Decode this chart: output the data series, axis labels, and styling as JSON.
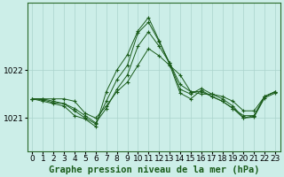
{
  "title": "Graphe pression niveau de la mer (hPa)",
  "background_color": "#cceee8",
  "grid_color": "#aad4cc",
  "line_color": "#1a5c1a",
  "xlabel_fontsize": 6.5,
  "ylabel_fontsize": 6.5,
  "title_fontsize": 7.5,
  "xlim": [
    -0.5,
    23.5
  ],
  "ylim": [
    1020.3,
    1023.4
  ],
  "yticks": [
    1021,
    1022
  ],
  "xticks": [
    0,
    1,
    2,
    3,
    4,
    5,
    6,
    7,
    8,
    9,
    10,
    11,
    12,
    13,
    14,
    15,
    16,
    17,
    18,
    19,
    20,
    21,
    22,
    23
  ],
  "series": [
    [
      1021.4,
      1021.4,
      1021.4,
      1021.4,
      1021.35,
      1021.1,
      1021.0,
      1021.25,
      1021.55,
      1021.75,
      1022.1,
      1022.45,
      1022.3,
      1022.1,
      1021.9,
      1021.55,
      1021.5,
      1021.5,
      1021.45,
      1021.35,
      1021.15,
      1021.15,
      1021.45,
      1021.55
    ],
    [
      1021.4,
      1021.4,
      1021.35,
      1021.3,
      1021.2,
      1021.05,
      1020.9,
      1021.2,
      1021.6,
      1021.9,
      1022.5,
      1022.8,
      1022.5,
      1022.15,
      1021.7,
      1021.55,
      1021.55,
      1021.45,
      1021.35,
      1021.2,
      1021.05,
      1021.05,
      1021.45,
      1021.55
    ],
    [
      1021.4,
      1021.38,
      1021.32,
      1021.3,
      1021.15,
      1021.0,
      1020.88,
      1021.35,
      1021.8,
      1022.1,
      1022.78,
      1023.0,
      1022.6,
      1022.15,
      1021.6,
      1021.5,
      1021.62,
      1021.5,
      1021.4,
      1021.25,
      1021.0,
      1021.02,
      1021.42,
      1021.52
    ],
    [
      1021.4,
      1021.35,
      1021.3,
      1021.25,
      1021.05,
      1020.98,
      1020.82,
      1021.55,
      1022.0,
      1022.32,
      1022.82,
      1023.1,
      1022.62,
      1022.12,
      1021.52,
      1021.4,
      1021.58,
      1021.45,
      1021.35,
      1021.2,
      1021.0,
      1021.05,
      1021.45,
      1021.55
    ]
  ]
}
